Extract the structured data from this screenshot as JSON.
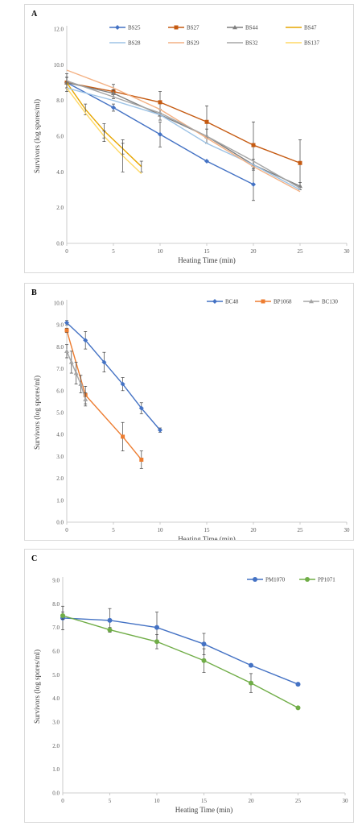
{
  "chart_data": [
    {
      "type": "line",
      "panel_label": "A",
      "xlabel": "Heating Time (min)",
      "ylabel": "Survivors (log spores/ml)",
      "xlim": [
        0,
        30
      ],
      "ylim": [
        0,
        12
      ],
      "xticks": [
        0,
        5,
        10,
        15,
        20,
        25,
        30
      ],
      "yticks": [
        0,
        2,
        4,
        6,
        8,
        10,
        12
      ],
      "ytick_decimals": 1,
      "grid": false,
      "legend_position": "top",
      "legend_columns": 4,
      "series": [
        {
          "name": "BS25",
          "color": "#4472C4",
          "marker": "diamond",
          "x": [
            0,
            5,
            10,
            15,
            20
          ],
          "y": [
            9.0,
            7.6,
            6.1,
            4.6,
            3.3
          ],
          "err": [
            0.3,
            0.2,
            0.7,
            0,
            0.9
          ]
        },
        {
          "name": "BS27",
          "color": "#C55A11",
          "marker": "square",
          "x": [
            0,
            5,
            10,
            15,
            20,
            25
          ],
          "y": [
            9.0,
            8.5,
            7.9,
            6.8,
            5.5,
            4.5
          ],
          "err": [
            0.5,
            0.4,
            0.6,
            0.9,
            1.3,
            1.3
          ]
        },
        {
          "name": "BS44",
          "color": "#7F7F7F",
          "marker": "triangle",
          "x": [
            0,
            5,
            10,
            15,
            20,
            25
          ],
          "y": [
            9.0,
            8.4,
            7.2,
            6.0,
            4.4,
            3.2
          ],
          "err": [
            0.3,
            0.2,
            0.3,
            0.4,
            0.3,
            0.2
          ]
        },
        {
          "name": "BS47",
          "color": "#E6A500",
          "marker": "none",
          "x": [
            0,
            2,
            4,
            6,
            8
          ],
          "y": [
            9.0,
            7.5,
            6.3,
            5.3,
            4.3
          ],
          "err": [
            0.3,
            0.3,
            0.4,
            0.3,
            0.3
          ]
        },
        {
          "name": "BS28",
          "color": "#9DC3E6",
          "marker": "none",
          "x": [
            0,
            5,
            10,
            15,
            20,
            25
          ],
          "y": [
            8.7,
            8.0,
            7.2,
            5.6,
            4.4,
            3.0
          ],
          "err": [
            0,
            0,
            0,
            0,
            0,
            0
          ]
        },
        {
          "name": "BS29",
          "color": "#F4B183",
          "marker": "none",
          "x": [
            0,
            5,
            10,
            15,
            20,
            25
          ],
          "y": [
            9.7,
            8.7,
            7.5,
            5.9,
            4.3,
            2.9
          ],
          "err": [
            0,
            0,
            0,
            0,
            0,
            0
          ]
        },
        {
          "name": "BS32",
          "color": "#A5A5A5",
          "marker": "none",
          "x": [
            0,
            5,
            10,
            15,
            20,
            25
          ],
          "y": [
            9.1,
            8.2,
            7.3,
            6.0,
            4.6,
            3.1
          ],
          "err": [
            0,
            0,
            0,
            0,
            0,
            0
          ]
        },
        {
          "name": "BS137",
          "color": "#FFD966",
          "marker": "none",
          "x": [
            0,
            2,
            4,
            6,
            8
          ],
          "y": [
            8.7,
            7.3,
            6.0,
            4.9,
            3.9
          ],
          "err": [
            0,
            0,
            0.3,
            0.9,
            0
          ]
        }
      ]
    },
    {
      "type": "line",
      "panel_label": "B",
      "xlabel": "Heating Time (min)",
      "ylabel": "Survivors (log spores/ml)",
      "xlim": [
        0,
        30
      ],
      "ylim": [
        0,
        10
      ],
      "xticks": [
        0,
        5,
        10,
        15,
        20,
        25,
        30
      ],
      "yticks": [
        0,
        1,
        2,
        3,
        4,
        5,
        6,
        7,
        8,
        9,
        10
      ],
      "ytick_decimals": 1,
      "grid": false,
      "legend_position": "top-right",
      "legend_columns": 3,
      "series": [
        {
          "name": "BC48",
          "color": "#4472C4",
          "marker": "diamond",
          "x": [
            0,
            2,
            4,
            6,
            8,
            10
          ],
          "y": [
            9.1,
            8.3,
            7.3,
            6.3,
            5.2,
            4.2
          ],
          "err": [
            0.1,
            0.4,
            0.45,
            0.3,
            0.25,
            0.1
          ]
        },
        {
          "name": "BP1068",
          "color": "#ED7D31",
          "marker": "square",
          "x": [
            0,
            2,
            6,
            8
          ],
          "y": [
            8.75,
            5.8,
            3.9,
            2.85
          ],
          "err": [
            0.1,
            0.4,
            0.65,
            0.4
          ]
        },
        {
          "name": "BC130",
          "color": "#A5A5A5",
          "marker": "triangle",
          "x": [
            0,
            0.5,
            1,
            1.5,
            2
          ],
          "y": [
            7.8,
            7.3,
            6.8,
            6.3,
            5.6
          ],
          "err": [
            0.3,
            0.5,
            0.5,
            0.4,
            0.3
          ]
        }
      ]
    },
    {
      "type": "line",
      "panel_label": "C",
      "xlabel": "Heating Time (min)",
      "ylabel": "Survivors (log spores/ml)",
      "xlim": [
        0,
        30
      ],
      "ylim": [
        0,
        9
      ],
      "xticks": [
        0,
        5,
        10,
        15,
        20,
        25,
        30
      ],
      "yticks": [
        0,
        1,
        2,
        3,
        4,
        5,
        6,
        7,
        8,
        9
      ],
      "ytick_decimals": 1,
      "grid": false,
      "legend_position": "top-right",
      "legend_columns": 2,
      "series": [
        {
          "name": "PM1070",
          "color": "#4472C4",
          "marker": "circle",
          "x": [
            0,
            5,
            10,
            15,
            20,
            25
          ],
          "y": [
            7.4,
            7.3,
            7.0,
            6.3,
            5.4,
            4.6
          ],
          "err": [
            0.5,
            0.5,
            0.65,
            0.45,
            0,
            0
          ]
        },
        {
          "name": "PP1071",
          "color": "#70AD47",
          "marker": "circle",
          "x": [
            0,
            5,
            10,
            15,
            20,
            25
          ],
          "y": [
            7.5,
            6.9,
            6.4,
            5.6,
            4.65,
            3.6
          ],
          "err": [
            0.15,
            0.1,
            0.3,
            0.5,
            0.4,
            0
          ]
        }
      ]
    }
  ]
}
